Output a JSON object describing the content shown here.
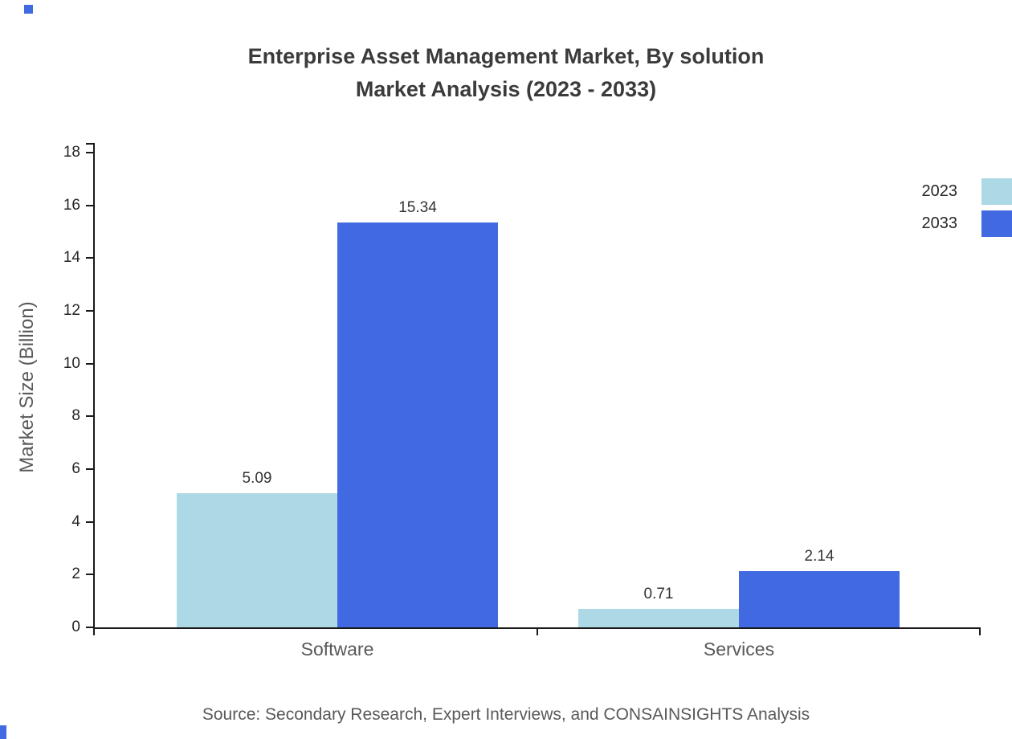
{
  "title": {
    "line1": "Enterprise Asset Management Market, By solution",
    "line2": "Market Analysis (2023 - 2033)"
  },
  "source": "Source: Secondary Research, Expert Interviews, and CONSAINSIGHTS Analysis",
  "colors": {
    "series_2023": "#ADD8E6",
    "series_2033": "#4169E1",
    "axis": "#1a1a1a"
  },
  "chart_data": {
    "type": "bar",
    "title": "Enterprise Asset Management Market, By solution Market Analysis (2023 - 2033)",
    "categories": [
      "Software",
      "Services"
    ],
    "series": [
      {
        "name": "2023",
        "color": "#ADD8E6",
        "values": [
          5.09,
          0.71
        ]
      },
      {
        "name": "2033",
        "color": "#4169E1",
        "values": [
          15.34,
          2.14
        ]
      }
    ],
    "xlabel": "",
    "ylabel": "Market Size (Billion)",
    "ylim": [
      0,
      18
    ],
    "yticks": [
      0,
      2,
      4,
      6,
      8,
      10,
      12,
      14,
      16,
      18
    ],
    "grid": false,
    "legend_position": "top-right"
  }
}
